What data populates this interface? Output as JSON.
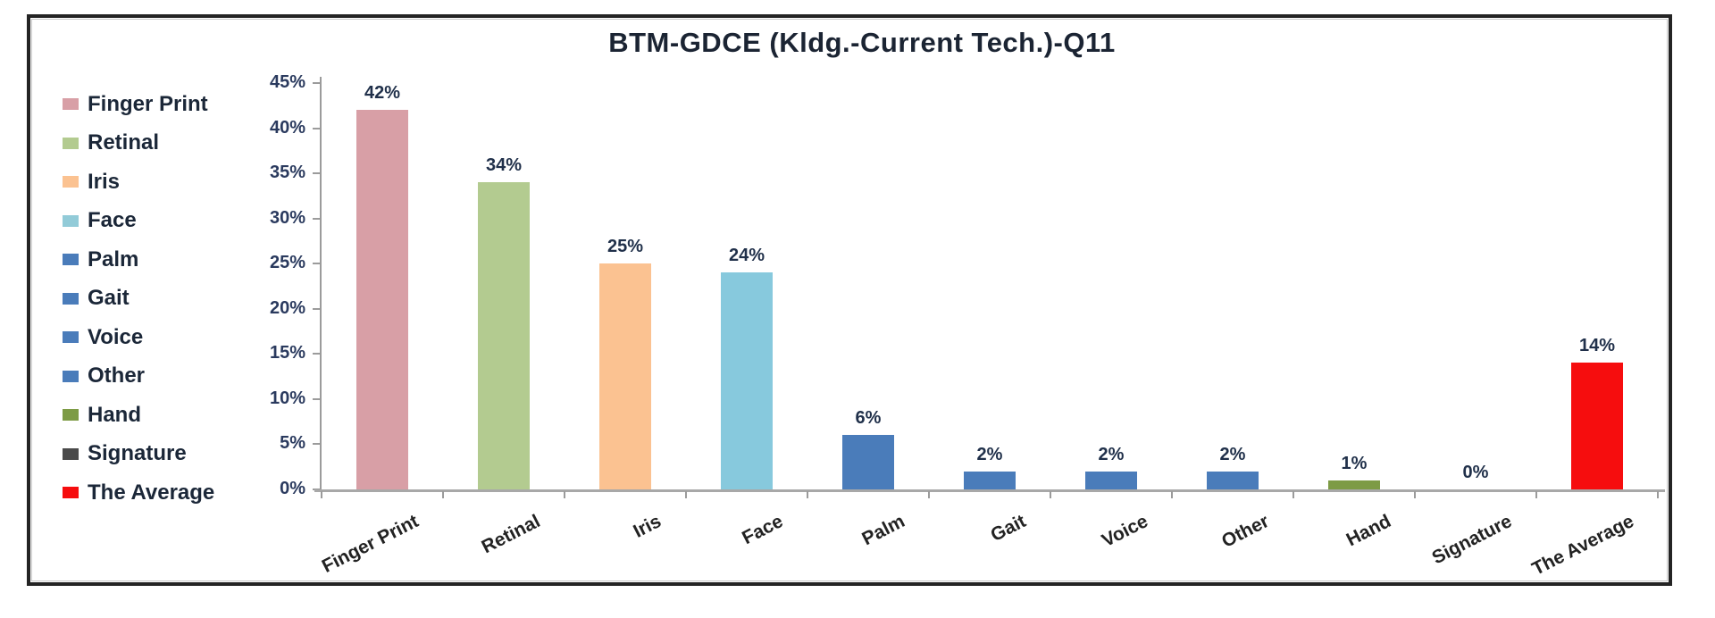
{
  "chart_data": {
    "type": "bar",
    "title": "BTM-GDCE (Kldg.-Current Tech.)-Q11",
    "categories": [
      "Finger Print",
      "Retinal",
      "Iris",
      "Face",
      "Palm",
      "Gait",
      "Voice",
      "Other",
      "Hand",
      "Signature",
      "The Average"
    ],
    "values": [
      42,
      34,
      25,
      24,
      6,
      2,
      2,
      2,
      1,
      0,
      14
    ],
    "value_labels": [
      "42%",
      "34%",
      "25%",
      "24%",
      "6%",
      "2%",
      "2%",
      "2%",
      "1%",
      "0%",
      "14%"
    ],
    "bar_colors": [
      "#d89fa6",
      "#b3cb90",
      "#fbc291",
      "#87c9dd",
      "#4a7cba",
      "#4a7cba",
      "#4a7cba",
      "#4a7cba",
      "#7d9b45",
      "#4a4a4a",
      "#f60d0e"
    ],
    "legend_entries": [
      {
        "label": "Finger Print",
        "color": "#d89fa6"
      },
      {
        "label": "Retinal",
        "color": "#b3cb90"
      },
      {
        "label": "Iris",
        "color": "#fbc291"
      },
      {
        "label": "Face",
        "color": "#92cbd8"
      },
      {
        "label": "Palm",
        "color": "#4a7cba"
      },
      {
        "label": "Gait",
        "color": "#4a7cba"
      },
      {
        "label": "Voice",
        "color": "#4a7cba"
      },
      {
        "label": "Other",
        "color": "#4a7cba"
      },
      {
        "label": "Hand",
        "color": "#7d9b45"
      },
      {
        "label": "Signature",
        "color": "#4a4a4a"
      },
      {
        "label": "The Average",
        "color": "#f60d0e"
      }
    ],
    "xlabel": "",
    "ylabel": "",
    "ylim": [
      0,
      45
    ],
    "ytick_step": 5,
    "ytick_labels": [
      "0%",
      "5%",
      "10%",
      "15%",
      "20%",
      "25%",
      "30%",
      "35%",
      "40%",
      "45%"
    ],
    "legend_position": "left",
    "grid": false
  }
}
